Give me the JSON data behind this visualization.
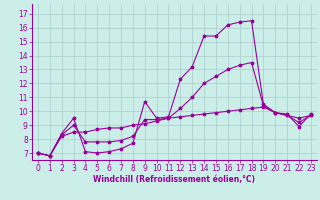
{
  "title": "",
  "xlabel": "Windchill (Refroidissement éolien,°C)",
  "bg_color": "#cceee8",
  "grid_color": "#aacccc",
  "line_color": "#990099",
  "xlim": [
    -0.5,
    23.5
  ],
  "ylim": [
    6.5,
    17.7
  ],
  "xticks": [
    0,
    1,
    2,
    3,
    4,
    5,
    6,
    7,
    8,
    9,
    10,
    11,
    12,
    13,
    14,
    15,
    16,
    17,
    18,
    19,
    20,
    21,
    22,
    23
  ],
  "yticks": [
    7,
    8,
    9,
    10,
    11,
    12,
    13,
    14,
    15,
    16,
    17
  ],
  "line1_x": [
    0,
    1,
    2,
    3,
    4,
    5,
    6,
    7,
    8,
    9,
    10,
    11,
    12,
    13,
    14,
    15,
    16,
    17,
    18,
    19,
    20,
    21,
    22,
    23
  ],
  "line1_y": [
    7.0,
    6.8,
    8.4,
    9.5,
    7.1,
    7.0,
    7.1,
    7.3,
    7.7,
    10.7,
    9.5,
    9.6,
    12.3,
    13.2,
    15.4,
    15.4,
    16.2,
    16.4,
    16.5,
    10.5,
    9.9,
    9.8,
    8.9,
    9.8
  ],
  "line2_x": [
    0,
    1,
    2,
    3,
    4,
    5,
    6,
    7,
    8,
    9,
    10,
    11,
    12,
    13,
    14,
    15,
    16,
    17,
    18,
    19,
    20,
    21,
    22,
    23
  ],
  "line2_y": [
    7.0,
    6.8,
    8.2,
    8.5,
    8.5,
    8.7,
    8.8,
    8.8,
    9.0,
    9.1,
    9.3,
    9.5,
    9.6,
    9.7,
    9.8,
    9.9,
    10.0,
    10.1,
    10.2,
    10.3,
    9.9,
    9.7,
    9.5,
    9.7
  ],
  "line3_x": [
    0,
    1,
    2,
    3,
    4,
    5,
    6,
    7,
    8,
    9,
    10,
    11,
    12,
    13,
    14,
    15,
    16,
    17,
    18,
    19,
    20,
    21,
    22,
    23
  ],
  "line3_y": [
    7.0,
    6.8,
    8.3,
    9.0,
    7.8,
    7.8,
    7.8,
    7.9,
    8.2,
    9.4,
    9.4,
    9.5,
    10.2,
    11.0,
    12.0,
    12.5,
    13.0,
    13.3,
    13.5,
    10.4,
    9.9,
    9.7,
    9.2,
    9.7
  ],
  "tick_fontsize": 5.5,
  "xlabel_fontsize": 5.5
}
